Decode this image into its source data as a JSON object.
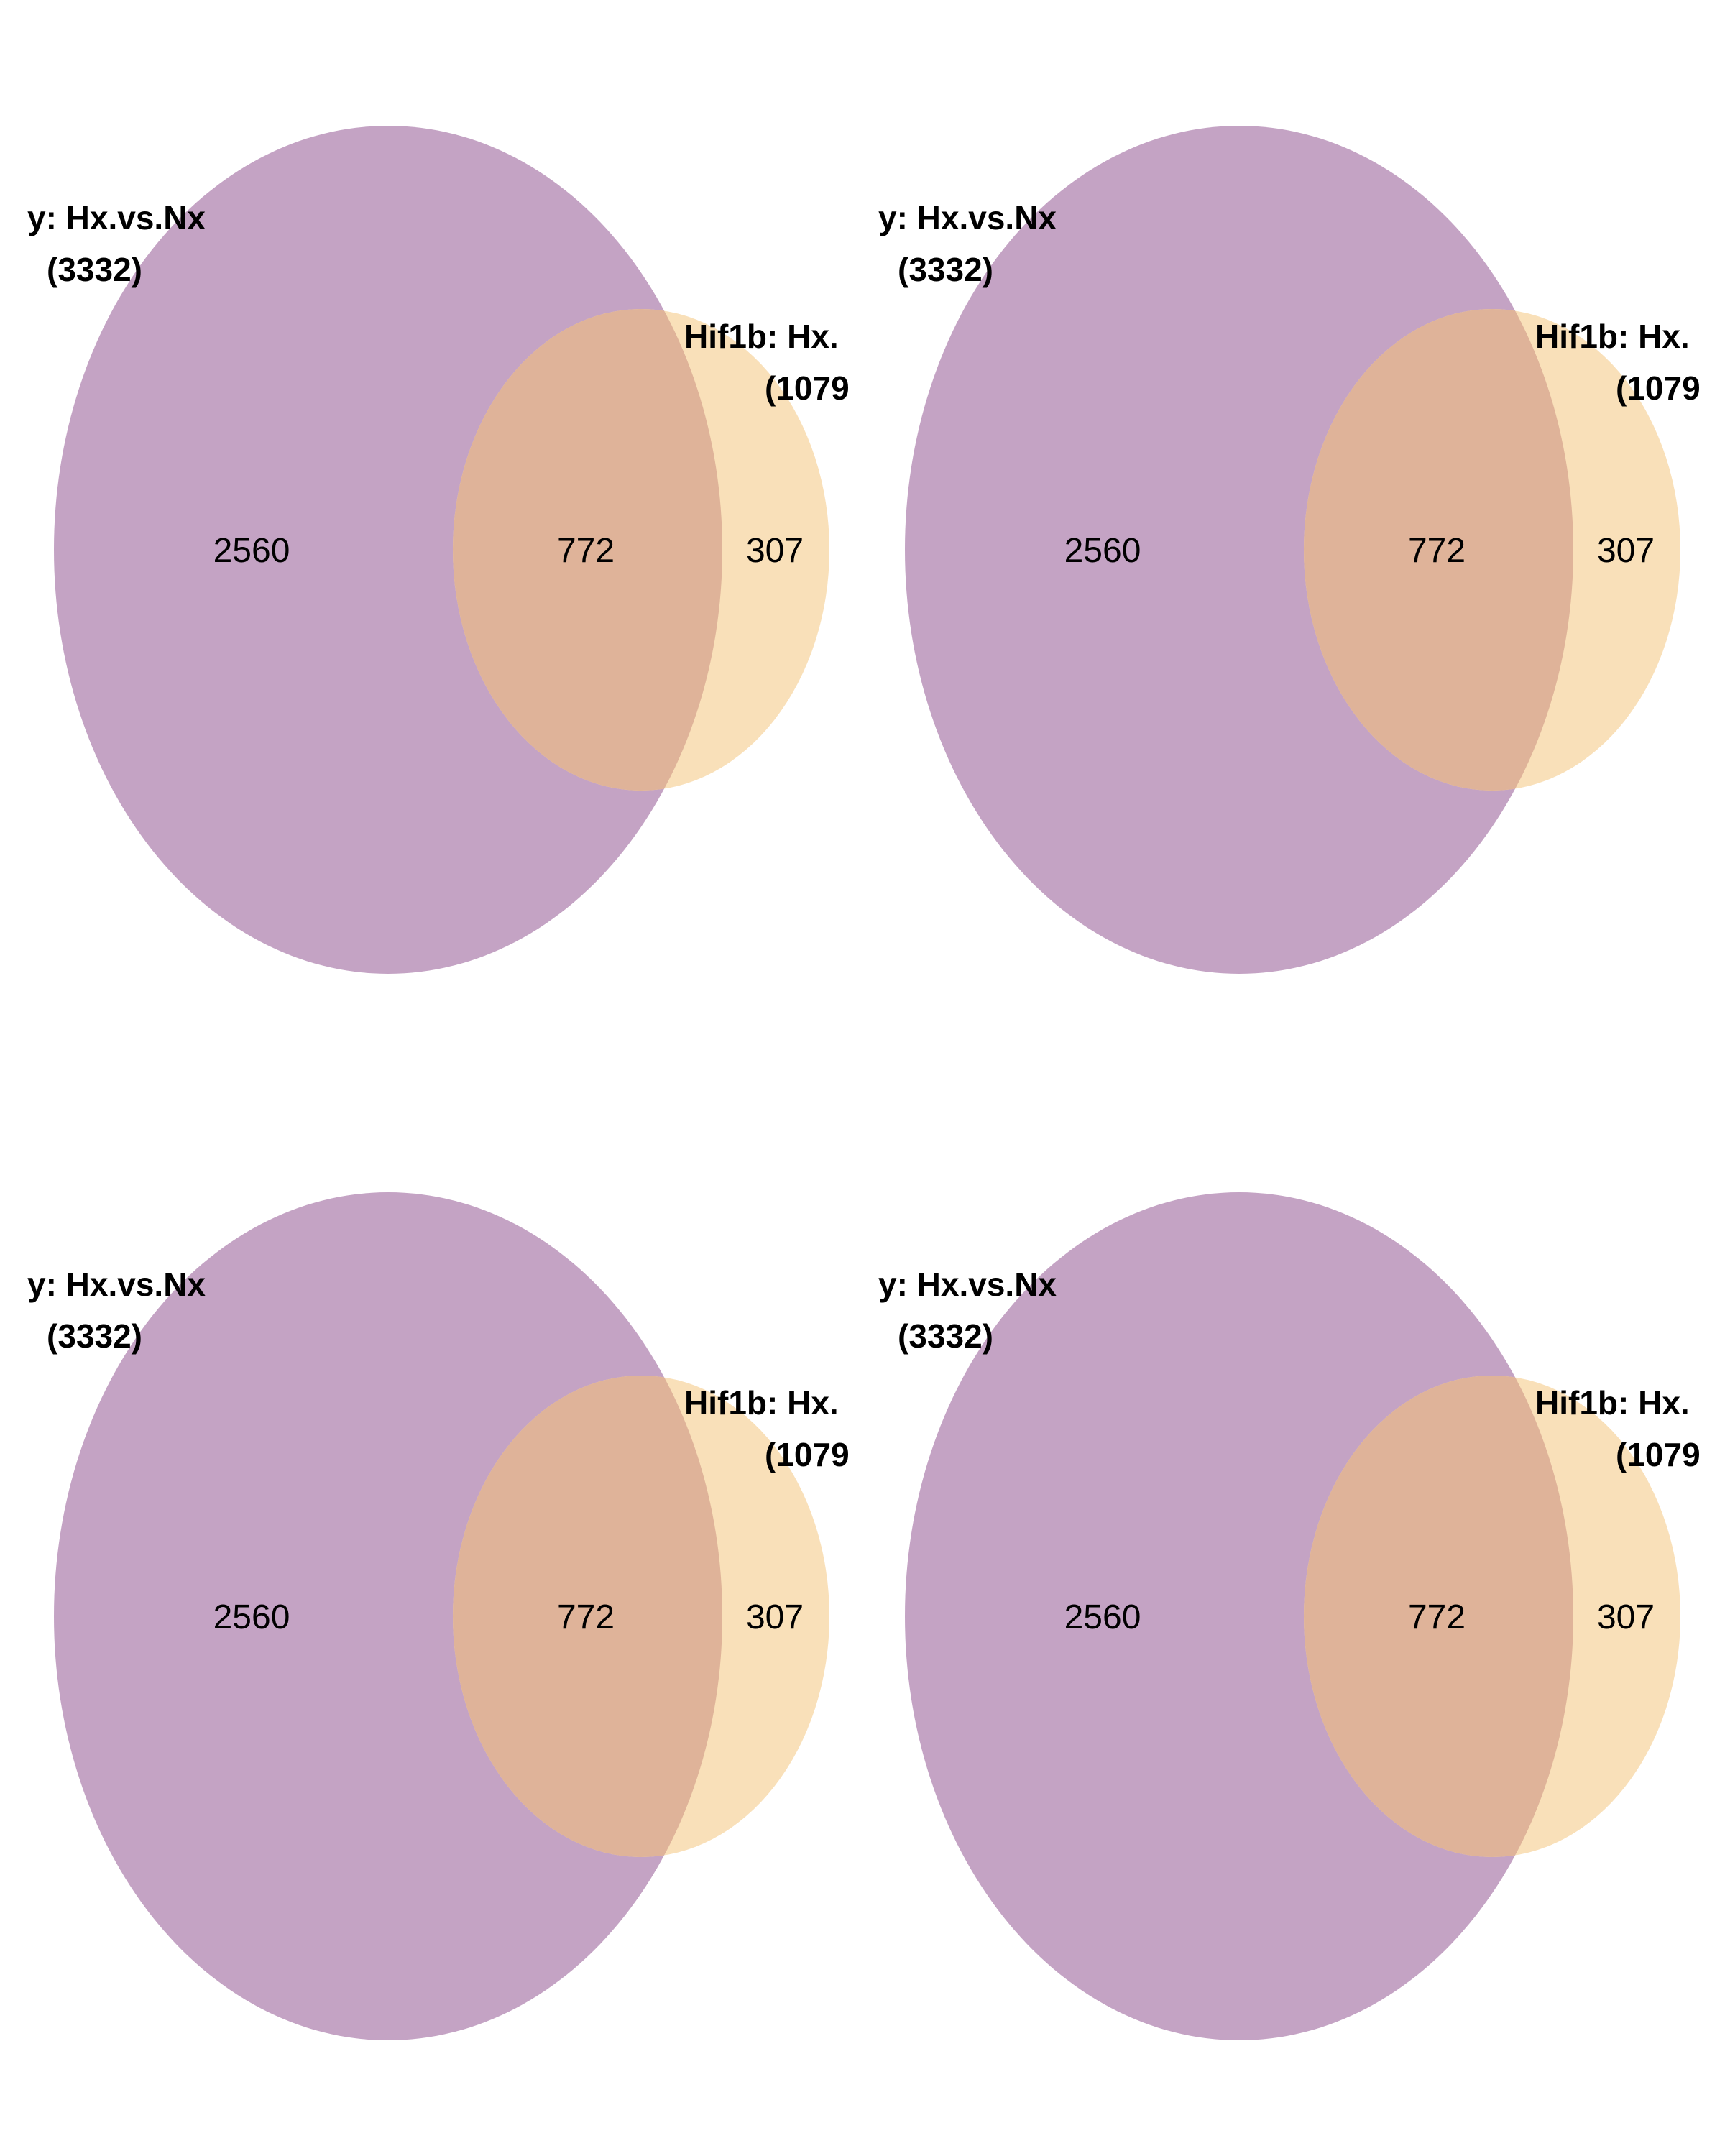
{
  "colors": {
    "set_a_fill": "#c4a3c4",
    "set_b_fill": "#f9e0b9",
    "overlap_fill": "#dfb399",
    "background": "#ffffff"
  },
  "panels": [
    {
      "set_a_name": "y: Hx.vs.Nx",
      "set_a_total": "(3332)",
      "set_b_name": "Hif1b: Hx.",
      "set_b_total": "(1079",
      "only_a": "2560",
      "both": "772",
      "only_b": "307"
    },
    {
      "set_a_name": "y: Hx.vs.Nx",
      "set_a_total": "(3332)",
      "set_b_name": "Hif1b: Hx.",
      "set_b_total": "(1079",
      "only_a": "2560",
      "both": "772",
      "only_b": "307"
    },
    {
      "set_a_name": "y: Hx.vs.Nx",
      "set_a_total": "(3332)",
      "set_b_name": "Hif1b: Hx.",
      "set_b_total": "(1079",
      "only_a": "2560",
      "both": "772",
      "only_b": "307"
    },
    {
      "set_a_name": "y: Hx.vs.Nx",
      "set_a_total": "(3332)",
      "set_b_name": "Hif1b: Hx.",
      "set_b_total": "(1079",
      "only_a": "2560",
      "both": "772",
      "only_b": "307"
    }
  ]
}
